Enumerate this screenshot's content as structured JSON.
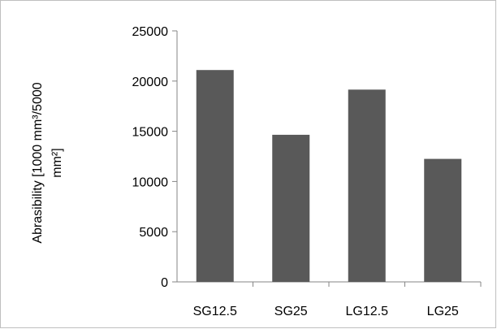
{
  "chart_data": {
    "type": "bar",
    "title": "",
    "xlabel": "",
    "ylabel_lines": [
      "Abrasibility [1000 mm³/5000",
      "mm²]"
    ],
    "categories": [
      "SG12.5",
      "SG25",
      "LG12.5",
      "LG25"
    ],
    "values": [
      21100,
      14650,
      19150,
      12250
    ],
    "ylim": [
      0,
      25000
    ],
    "yticks": [
      0,
      5000,
      10000,
      15000,
      20000,
      25000
    ],
    "bar_color": "#595959",
    "grid": false,
    "legend": "none"
  }
}
